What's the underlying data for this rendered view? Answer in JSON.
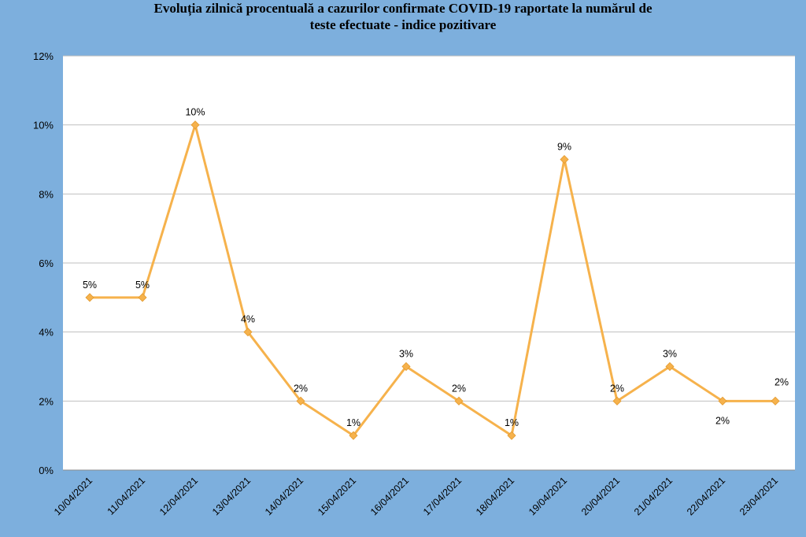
{
  "title_lines": [
    "Evoluția zilnică procentuală a cazurilor confirmate COVID-19 raportate la numărul de",
    "teste efectuate - indice pozitivare"
  ],
  "colors": {
    "background": "#7DAFDD",
    "plot_area": "#FFFFFF",
    "line": "#F6B24C",
    "marker": "#F6B24C",
    "grid": "#BFBFBF"
  },
  "chart_data": {
    "type": "line",
    "title": "Evoluția zilnică procentuală a cazurilor confirmate COVID-19 raportate la numărul de teste efectuate - indice pozitivare",
    "xlabel": "",
    "ylabel": "",
    "categories": [
      "10/04/2021",
      "11/04/2021",
      "12/04/2021",
      "13/04/2021",
      "14/04/2021",
      "15/04/2021",
      "16/04/2021",
      "17/04/2021",
      "18/04/2021",
      "19/04/2021",
      "20/04/2021",
      "21/04/2021",
      "22/04/2021",
      "23/04/2021"
    ],
    "series": [
      {
        "values": [
          5,
          5,
          10,
          4,
          2,
          1,
          3,
          2,
          1,
          9,
          2,
          3,
          2,
          2
        ],
        "data_labels": [
          "5%",
          "5%",
          "10%",
          "4%",
          "2%",
          "1%",
          "3%",
          "2%",
          "1%",
          "9%",
          "2%",
          "3%",
          "2%",
          "2%"
        ]
      }
    ],
    "ylim": [
      0,
      12
    ],
    "yticks": [
      0,
      2,
      4,
      6,
      8,
      10,
      12
    ],
    "ytick_labels": [
      "0%",
      "2%",
      "4%",
      "6%",
      "8%",
      "10%",
      "12%"
    ],
    "grid": true,
    "legend": false
  }
}
